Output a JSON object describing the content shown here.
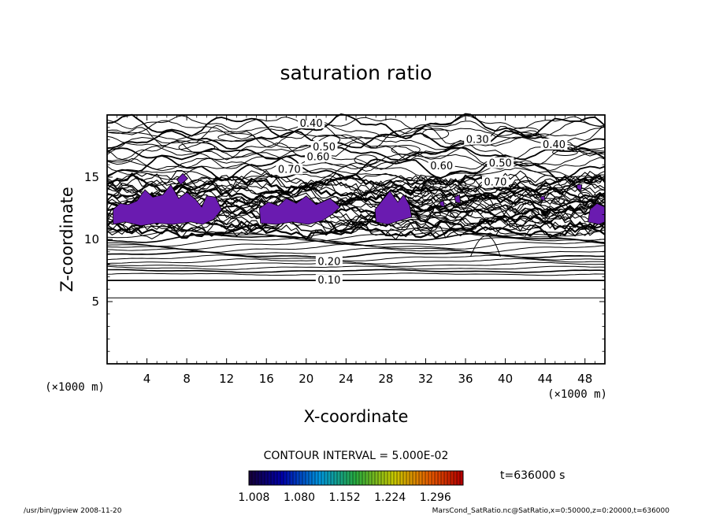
{
  "chart_data": {
    "type": "heatmap",
    "title": "saturation ratio",
    "xlabel": "X-coordinate",
    "ylabel": "Z-coordinate",
    "x_unit": "(×1000 m)",
    "z_unit": "(×1000 m)",
    "xlim": [
      0,
      50
    ],
    "ylim": [
      0,
      20
    ],
    "x_ticks": [
      4,
      8,
      12,
      16,
      20,
      24,
      28,
      32,
      36,
      40,
      44,
      48
    ],
    "y_ticks": [
      5,
      10,
      15
    ],
    "contour_interval_label": "CONTOUR INTERVAL = 5.000E-02",
    "time_label": "t=636000 s",
    "colorbar": {
      "min": 1.0,
      "max": 1.34,
      "tick_values": [
        1.008,
        1.08,
        1.152,
        1.224,
        1.296
      ],
      "tick_labels": [
        "1.008",
        "1.080",
        "1.152",
        "1.224",
        "1.296"
      ]
    },
    "contour_labels": [
      {
        "text": "0.40",
        "x": 20.5,
        "z": 19.3
      },
      {
        "text": "0.50",
        "x": 21.8,
        "z": 17.4
      },
      {
        "text": "0.60",
        "x": 21.2,
        "z": 16.6
      },
      {
        "text": "0.70",
        "x": 18.3,
        "z": 15.6
      },
      {
        "text": "0.30",
        "x": 37.2,
        "z": 18.0
      },
      {
        "text": "0.40",
        "x": 44.9,
        "z": 17.6
      },
      {
        "text": "0.60",
        "x": 33.6,
        "z": 15.9
      },
      {
        "text": "0.50",
        "x": 39.5,
        "z": 16.1
      },
      {
        "text": "0.70",
        "x": 39.0,
        "z": 14.6
      },
      {
        "text": "0.20",
        "x": 22.3,
        "z": 8.2
      },
      {
        "text": "0.10",
        "x": 22.3,
        "z": 6.7
      }
    ],
    "supersaturated_regions": [
      {
        "name": "region-1",
        "points": [
          [
            0.6,
            11.2
          ],
          [
            1.8,
            11.4
          ],
          [
            3.4,
            11.1
          ],
          [
            5.0,
            11.3
          ],
          [
            6.6,
            11.2
          ],
          [
            8.4,
            11.4
          ],
          [
            9.6,
            11.2
          ],
          [
            10.7,
            11.6
          ],
          [
            11.5,
            12.4
          ],
          [
            10.9,
            13.4
          ],
          [
            10.0,
            13.5
          ],
          [
            9.5,
            12.6
          ],
          [
            8.9,
            13.2
          ],
          [
            8.0,
            13.8
          ],
          [
            7.2,
            13.3
          ],
          [
            6.4,
            14.4
          ],
          [
            5.6,
            13.6
          ],
          [
            4.6,
            13.4
          ],
          [
            3.8,
            14.0
          ],
          [
            3.0,
            13.1
          ],
          [
            2.1,
            12.8
          ],
          [
            1.3,
            12.9
          ],
          [
            0.6,
            12.4
          ]
        ]
      },
      {
        "name": "region-2",
        "points": [
          [
            7.4,
            14.4
          ],
          [
            8.1,
            14.9
          ],
          [
            7.6,
            15.3
          ],
          [
            7.0,
            14.8
          ]
        ]
      },
      {
        "name": "region-3",
        "points": [
          [
            15.4,
            11.3
          ],
          [
            17.0,
            11.2
          ],
          [
            18.6,
            11.4
          ],
          [
            20.2,
            11.2
          ],
          [
            21.6,
            11.5
          ],
          [
            22.6,
            12.0
          ],
          [
            23.4,
            12.6
          ],
          [
            22.4,
            13.3
          ],
          [
            21.0,
            12.8
          ],
          [
            20.0,
            13.5
          ],
          [
            19.0,
            12.9
          ],
          [
            18.0,
            13.3
          ],
          [
            17.2,
            12.7
          ],
          [
            16.2,
            13.0
          ],
          [
            15.3,
            12.5
          ]
        ]
      },
      {
        "name": "region-4",
        "points": [
          [
            27.0,
            11.4
          ],
          [
            28.2,
            11.2
          ],
          [
            29.4,
            11.5
          ],
          [
            30.6,
            11.8
          ],
          [
            30.4,
            12.7
          ],
          [
            29.8,
            13.6
          ],
          [
            29.2,
            13.0
          ],
          [
            28.4,
            13.9
          ],
          [
            27.6,
            13.1
          ],
          [
            26.9,
            12.4
          ]
        ]
      },
      {
        "name": "region-5",
        "points": [
          [
            33.5,
            12.7
          ],
          [
            33.9,
            12.6
          ],
          [
            33.8,
            13.1
          ],
          [
            33.4,
            13.0
          ]
        ]
      },
      {
        "name": "region-6",
        "points": [
          [
            35.0,
            13.0
          ],
          [
            35.5,
            12.9
          ],
          [
            35.4,
            13.6
          ],
          [
            34.9,
            13.4
          ]
        ]
      },
      {
        "name": "region-7",
        "points": [
          [
            43.6,
            13.2
          ],
          [
            44.0,
            13.1
          ],
          [
            43.9,
            13.5
          ],
          [
            43.5,
            13.4
          ]
        ]
      },
      {
        "name": "region-8",
        "points": [
          [
            47.2,
            14.1
          ],
          [
            47.6,
            13.9
          ],
          [
            47.7,
            14.4
          ],
          [
            47.2,
            14.4
          ]
        ]
      },
      {
        "name": "region-9",
        "points": [
          [
            48.3,
            11.4
          ],
          [
            49.4,
            11.2
          ],
          [
            50.0,
            11.4
          ],
          [
            50.0,
            12.6
          ],
          [
            49.2,
            12.9
          ],
          [
            48.5,
            12.4
          ]
        ]
      }
    ]
  },
  "footer": {
    "left": "/usr/bin/gpview   2008-11-20",
    "right": "MarsCond_SatRatio.nc@SatRatio,x=0:50000,z=0:20000,t=636000"
  },
  "colors": {
    "fill": "#6a1bb0",
    "line": "#000000"
  }
}
